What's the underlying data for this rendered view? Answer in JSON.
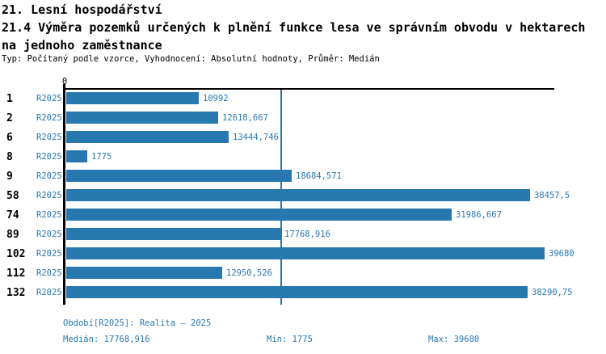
{
  "header": {
    "title_line1": "21. Lesní hospodářství",
    "title_line2": "21.4 Výměra pozemků určených k plnění funkce lesa ve správním obvodu v hektarech",
    "title_line3": "na jednoho zaměstnance",
    "subtitle": "Typ: Počítaný podle vzorce, Vyhodnocení: Absolutní hodnoty, Průměr: Medián"
  },
  "chart_data": {
    "type": "bar",
    "orientation": "horizontal",
    "axis_origin_label": "0",
    "series_label": "R2025",
    "categories": [
      "1",
      "2",
      "6",
      "8",
      "9",
      "58",
      "74",
      "89",
      "102",
      "112",
      "132"
    ],
    "values": [
      10992,
      12618.667,
      13444.746,
      1775,
      18684.571,
      38457.5,
      31986.667,
      17768.916,
      39680,
      12950.526,
      38290.75
    ],
    "value_labels": [
      "10992",
      "12618,667",
      "13444,746",
      "1775",
      "18684,571",
      "38457,5",
      "31986,667",
      "17768,916",
      "39680",
      "12950,526",
      "38290,75"
    ],
    "xlim": [
      0,
      40480
    ],
    "grid": false,
    "legend_position": "none",
    "median_value": 17768.916,
    "median_line": true,
    "title": "21.4 Výměra pozemků určených k plnění funkce lesa ve správním obvodu v hektarech na jednoho zaměstnance",
    "xlabel": "",
    "ylabel": ""
  },
  "footer": {
    "period": "Období[R2025]: Realita – 2025",
    "median": "Medián: 17768,916",
    "min": "Min: 1775",
    "max": "Max: 39680"
  },
  "colors": {
    "bar": "#2878b0",
    "label_blue": "#2878b2",
    "axis_black": "#000000",
    "background": "#ffffff"
  }
}
